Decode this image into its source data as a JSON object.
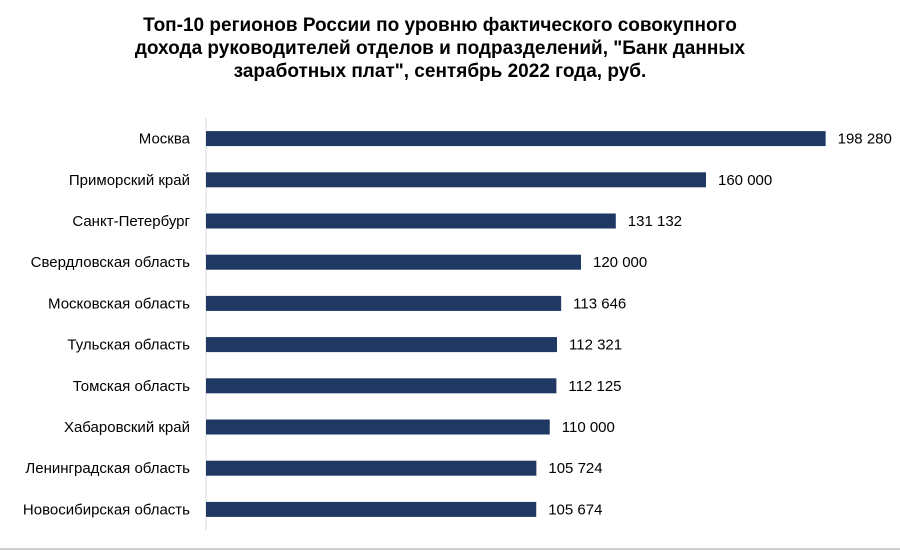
{
  "chart_data": {
    "type": "bar",
    "orientation": "horizontal",
    "title_lines": [
      "Топ-10 регионов России по уровню фактического совокупного",
      "дохода руководителей отделов и подразделений, \"Банк данных",
      "заработных плат\", сентябрь 2022 года, руб."
    ],
    "categories": [
      "Москва",
      "Приморский край",
      "Санкт-Петербург",
      "Свердловская область",
      "Московская область",
      "Тульская область",
      "Томская область",
      "Хабаровский край",
      "Ленинградская область",
      "Новосибирская область"
    ],
    "values": [
      198280,
      160000,
      131132,
      120000,
      113646,
      112321,
      112125,
      110000,
      105724,
      105674
    ],
    "value_labels": [
      "198 280",
      "160 000",
      "131 132",
      "120 000",
      "113 646",
      "112 321",
      "112 125",
      "110 000",
      "105 724",
      "105 674"
    ],
    "xlim": [
      0,
      200000
    ],
    "grid": false,
    "legend": "none",
    "bar_color": "#1f3864"
  }
}
